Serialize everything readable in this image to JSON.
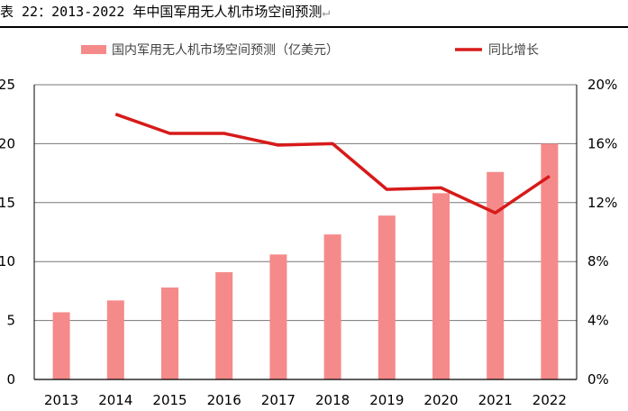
{
  "caption": {
    "text": "表 22：2013-2022 年中国军用无人机市场空间预测",
    "return_mark": "↵"
  },
  "colors": {
    "bar": "#f58a8a",
    "line": "#d71a1a",
    "grid": "#777777",
    "rule": "#000000"
  },
  "chart_data": {
    "type": "bar",
    "title": "",
    "categories": [
      "2013",
      "2014",
      "2015",
      "2016",
      "2017",
      "2018",
      "2019",
      "2020",
      "2021",
      "2022"
    ],
    "series": [
      {
        "name": "国内军用无人机市场空间预测（亿美元）",
        "type": "bar",
        "axis": "left",
        "values": [
          5.7,
          6.7,
          7.8,
          9.1,
          10.6,
          12.3,
          13.9,
          15.8,
          17.6,
          20.0
        ]
      },
      {
        "name": "同比增长",
        "type": "line",
        "axis": "right",
        "values": [
          null,
          18.0,
          16.7,
          16.7,
          15.9,
          16.0,
          12.9,
          13.0,
          11.3,
          13.8
        ]
      }
    ],
    "y_left": {
      "min": 0,
      "max": 25,
      "ticks": [
        "0",
        "5",
        "10",
        "15",
        "20",
        "25"
      ]
    },
    "y_right": {
      "min": 0,
      "max": 20,
      "ticks": [
        "0%",
        "4%",
        "8%",
        "12%",
        "16%",
        "20%"
      ]
    },
    "grid": true,
    "legend_position": "top"
  }
}
